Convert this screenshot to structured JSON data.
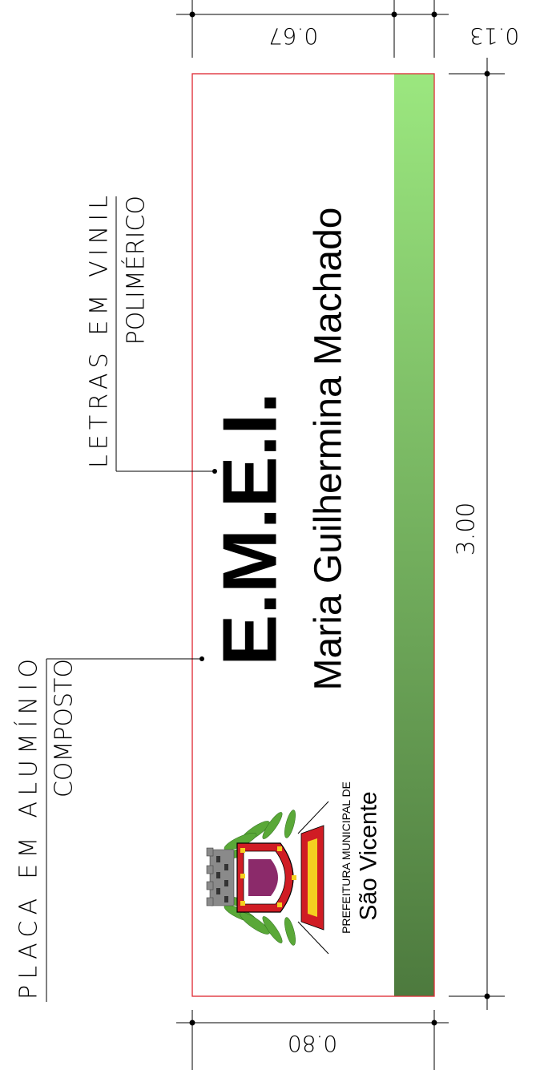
{
  "sign": {
    "title": "E.M.E.I.",
    "school_name": "Maria Guilhermina Machado",
    "logo_top_text": "PREFEITURA MUNICIPAL DE",
    "logo_city_text": "São Vicente"
  },
  "callouts": {
    "vinyl_line1": "LETRAS EM VINIL",
    "vinyl_line2": "POLIMÉRICO",
    "aluminum_line1": "PLACA EM ALUMÍNIO",
    "aluminum_line2": "COMPOSTO"
  },
  "dimensions": {
    "top_main": "0.67",
    "top_strip": "0.13",
    "length": "3.00",
    "bottom": "0.80"
  },
  "colors": {
    "border": "#e0303a",
    "strip_top": "#9be77f",
    "strip_bottom": "#4d7a3e",
    "crest_red": "#d01c24",
    "crest_green": "#5aa838"
  }
}
